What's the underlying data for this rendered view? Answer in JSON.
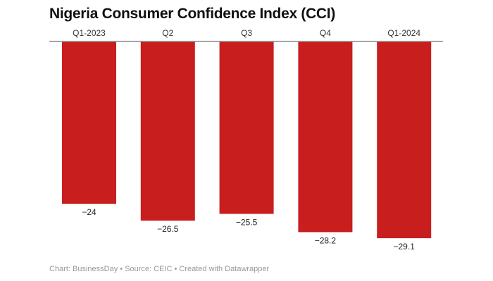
{
  "chart_data": {
    "type": "bar",
    "title": "Nigeria Consumer Confidence Index (CCI)",
    "categories": [
      "Q1-2023",
      "Q2",
      "Q3",
      "Q4",
      "Q1-2024"
    ],
    "values": [
      -24,
      -26.5,
      -25.5,
      -28.2,
      -29.1
    ],
    "value_labels": [
      "−24",
      "−26.5",
      "−25.5",
      "−28.2",
      "−29.1"
    ],
    "orientation": "vertical, bars hanging down from zero baseline",
    "category_labels_position": "top",
    "grid": false,
    "legend": "none",
    "bar_color": "#c81e1e"
  },
  "footer": {
    "chart_credit": "Chart: BusinessDay",
    "source": "Source: CEIC",
    "tool": "Created with Datawrapper",
    "separator": " • "
  }
}
